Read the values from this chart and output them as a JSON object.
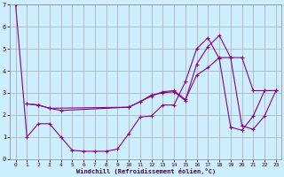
{
  "xlabel": "Windchill (Refroidissement éolien,°C)",
  "bg_color": "#cceeff",
  "grid_color": "#aaaaaa",
  "line_color": "#880088",
  "xlim": [
    -0.5,
    23.5
  ],
  "ylim": [
    0,
    7
  ],
  "xticks": [
    0,
    1,
    2,
    3,
    4,
    5,
    6,
    7,
    8,
    9,
    10,
    11,
    12,
    13,
    14,
    15,
    16,
    17,
    18,
    19,
    20,
    21,
    22,
    23
  ],
  "yticks": [
    0,
    1,
    2,
    3,
    4,
    5,
    6,
    7
  ],
  "line1_x": [
    0,
    1,
    2,
    3,
    4,
    5,
    6,
    7,
    8,
    9,
    10,
    11,
    12,
    13,
    14,
    15,
    16,
    17,
    18,
    19,
    20,
    21,
    22,
    23
  ],
  "line1_y": [
    7.0,
    1.0,
    1.6,
    1.6,
    1.0,
    0.4,
    0.35,
    0.35,
    0.35,
    0.45,
    1.15,
    1.9,
    1.95,
    2.45,
    2.45,
    3.5,
    5.0,
    5.5,
    4.55,
    1.45,
    1.3,
    1.95,
    3.1,
    3.1
  ],
  "line2_x": [
    1,
    2,
    3,
    10,
    11,
    12,
    13,
    14,
    15,
    16,
    17,
    18,
    19,
    20,
    21,
    22,
    23
  ],
  "line2_y": [
    2.5,
    2.45,
    2.3,
    2.35,
    2.6,
    2.9,
    3.0,
    3.05,
    2.65,
    4.3,
    5.1,
    5.6,
    4.6,
    1.5,
    1.35,
    1.95,
    3.1
  ],
  "line3_x": [
    1,
    2,
    3,
    4,
    10,
    11,
    12,
    13,
    14,
    15,
    16,
    17,
    18,
    19,
    20,
    21,
    22,
    23
  ],
  "line3_y": [
    2.5,
    2.45,
    2.3,
    2.2,
    2.35,
    2.6,
    2.85,
    3.05,
    3.1,
    2.7,
    3.8,
    4.15,
    4.6,
    4.6,
    4.6,
    3.1,
    3.1,
    3.1
  ]
}
